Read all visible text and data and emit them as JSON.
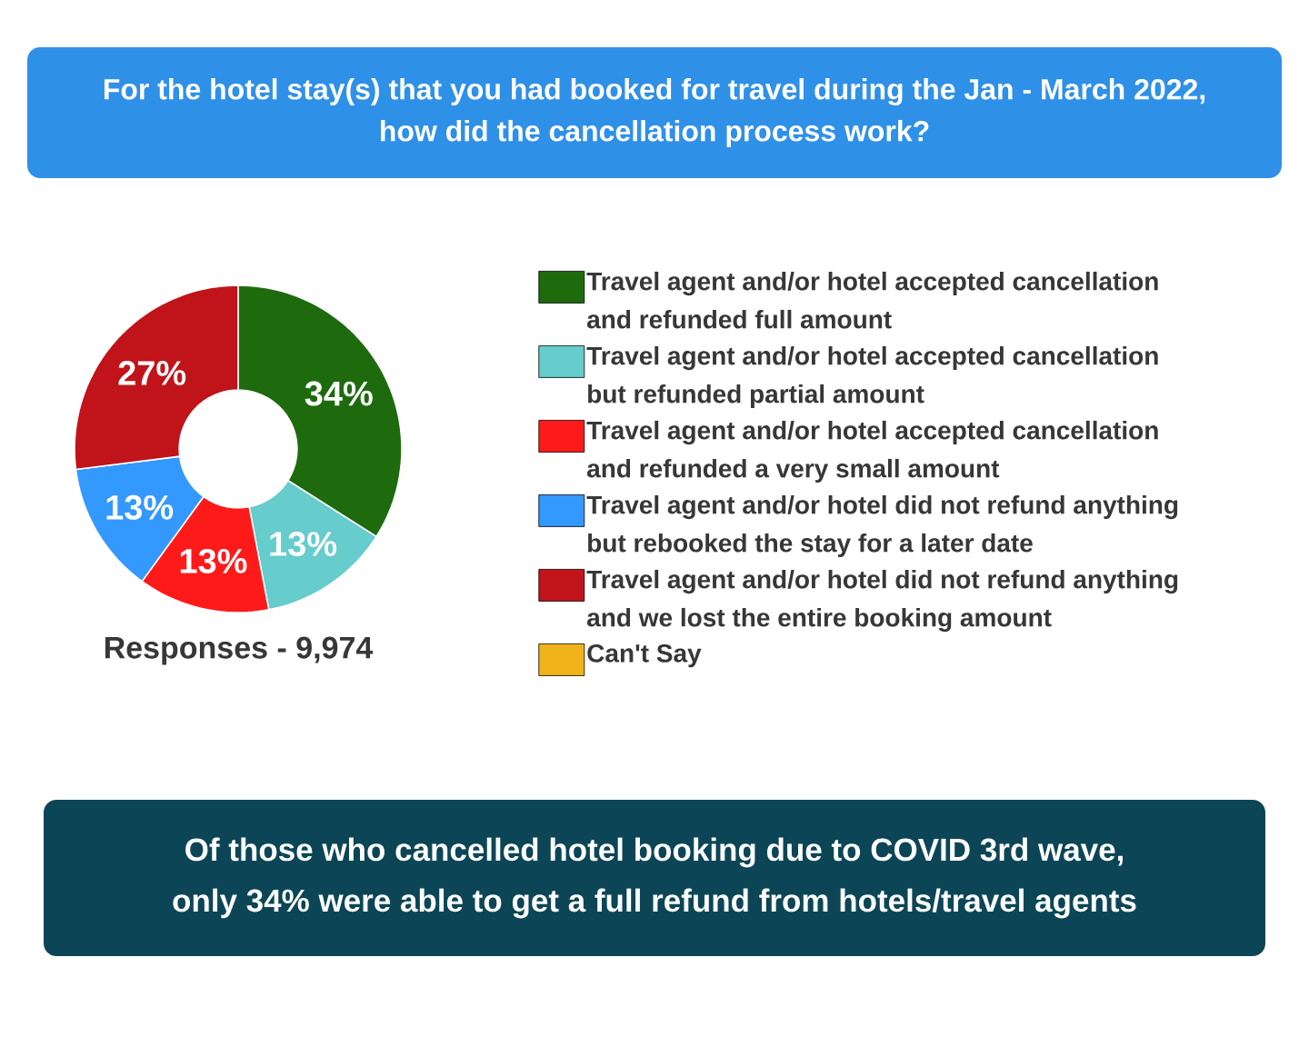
{
  "chart_data": {
    "type": "donut",
    "title": "For the hotel stay(s) that you had booked for travel during the Jan - March 2022, how did the cancellation process work?",
    "categories": [
      "Travel agent and/or hotel accepted cancellation and refunded full amount",
      "Travel agent and/or hotel accepted cancellation but refunded partial amount",
      "Travel agent and/or hotel accepted cancellation and refunded a very small amount",
      "Travel agent and/or hotel did not refund anything but rebooked the stay for a later date",
      "Travel agent and/or hotel did not refund anything and we lost the entire booking amount",
      "Can't Say"
    ],
    "values": [
      34,
      13,
      13,
      13,
      27,
      0
    ],
    "colors": [
      "#1e6b0e",
      "#66cccc",
      "#ff1a1a",
      "#3399ff",
      "#c0141a",
      "#f0b41a"
    ],
    "value_labels": [
      "34%",
      "13%",
      "13%",
      "13%",
      "27%",
      null
    ],
    "legend": "right",
    "annotations": [
      "Responses - 9,974",
      "Of those who cancelled hotel booking due to COVID 3rd wave, only 34% were able to get a full refund from hotels/travel agents"
    ]
  }
}
